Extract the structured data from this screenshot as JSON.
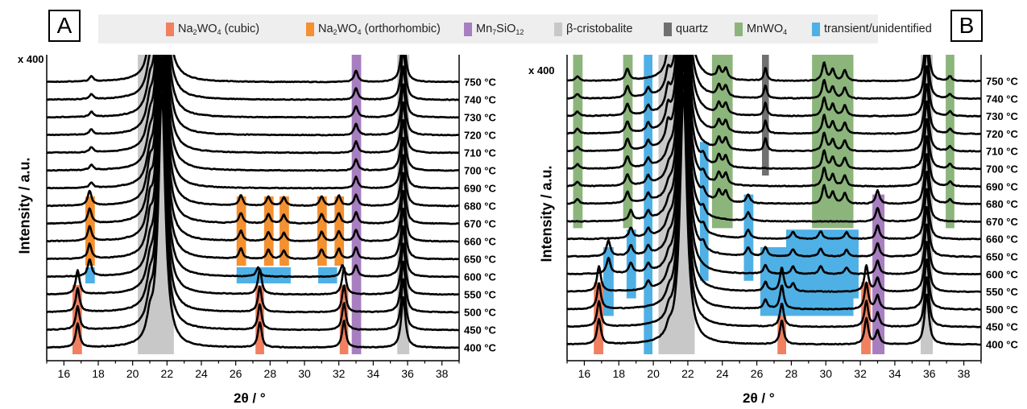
{
  "legend": {
    "items": [
      {
        "label": "Na",
        "sub": "2",
        "rest": "WO",
        "sub2": "4",
        "tail": " (cubic)",
        "color": "#f08060"
      },
      {
        "label": "Na",
        "sub": "2",
        "rest": "WO",
        "sub2": "4",
        "tail": " (orthorhombic)",
        "color": "#f39030"
      },
      {
        "label": "Mn",
        "sub": "7",
        "rest": "SiO",
        "sub2": "12",
        "tail": "",
        "color": "#a77fc0"
      },
      {
        "label": "β-cristobalite",
        "sub": "",
        "rest": "",
        "sub2": "",
        "tail": "",
        "color": "#c8c8c8"
      },
      {
        "label": "quartz",
        "sub": "",
        "rest": "",
        "sub2": "",
        "tail": "",
        "color": "#707070"
      },
      {
        "label": "MnWO",
        "sub": "4",
        "rest": "",
        "sub2": "",
        "tail": "",
        "color": "#8cb57c"
      },
      {
        "label": "transient/unidentified",
        "sub": "",
        "rest": "",
        "sub2": "",
        "tail": "",
        "color": "#4fb0e5"
      }
    ]
  },
  "chart_data": [
    {
      "type": "line",
      "panel": "A",
      "multiplier": "x 400",
      "xlabel": "2θ / °",
      "ylabel": "Intensity / a.u.",
      "xlim": [
        15,
        39
      ],
      "xticks": [
        16,
        18,
        20,
        22,
        24,
        26,
        28,
        30,
        32,
        34,
        36,
        38
      ],
      "temperatures": [
        "400 °C",
        "450 °C",
        "500 °C",
        "550 °C",
        "600 °C",
        "650 °C",
        "660 °C",
        "670 °C",
        "680 °C",
        "690 °C",
        "700 °C",
        "710 °C",
        "720 °C",
        "730 °C",
        "740 °C",
        "750 °C"
      ],
      "peaks": [
        {
          "pos": 16.8,
          "height": 4.2,
          "width": 0.13,
          "from": 0,
          "to": 3
        },
        {
          "pos": 27.4,
          "height": 4.5,
          "width": 0.13,
          "from": 0,
          "to": 3
        },
        {
          "pos": 32.3,
          "height": 4.8,
          "width": 0.13,
          "from": 0,
          "to": 3
        },
        {
          "pos": 17.5,
          "height": 3.0,
          "width": 0.13,
          "from": 4,
          "to": 4
        },
        {
          "pos": 27.3,
          "height": 1.6,
          "width": 0.13,
          "from": 4,
          "to": 4
        },
        {
          "pos": 32.2,
          "height": 2.0,
          "width": 0.13,
          "from": 4,
          "to": 4
        },
        {
          "pos": 17.5,
          "height": 2.6,
          "width": 0.13,
          "from": 5,
          "to": 8
        },
        {
          "pos": 17.6,
          "height": 0.9,
          "width": 0.13,
          "from": 9,
          "to": 15
        },
        {
          "pos": 21.0,
          "height": 1.1,
          "width": 0.15,
          "from": 5,
          "to": 8
        },
        {
          "pos": 26.3,
          "height": 1.8,
          "width": 0.13,
          "from": 5,
          "to": 8
        },
        {
          "pos": 27.9,
          "height": 1.6,
          "width": 0.13,
          "from": 5,
          "to": 8
        },
        {
          "pos": 28.8,
          "height": 1.5,
          "width": 0.13,
          "from": 5,
          "to": 8
        },
        {
          "pos": 31.0,
          "height": 1.7,
          "width": 0.13,
          "from": 5,
          "to": 8
        },
        {
          "pos": 32.0,
          "height": 1.8,
          "width": 0.13,
          "from": 5,
          "to": 8
        },
        {
          "pos": 33.0,
          "height": 2.0,
          "width": 0.13,
          "from": 4,
          "to": 15
        },
        {
          "pos": 35.75,
          "height": 9.0,
          "width": 0.15,
          "from": 0,
          "to": 15
        },
        {
          "pos": 21.0,
          "height": 3.5,
          "width": 0.22,
          "from": 0,
          "to": 15
        },
        {
          "pos": 21.7,
          "height": 45.0,
          "width": 0.24,
          "from": 0,
          "to": 15
        }
      ],
      "bands": [
        {
          "phase": "cubic",
          "color": "#f08060",
          "x0": 16.5,
          "x1": 17.05,
          "from": 0,
          "to": 3
        },
        {
          "phase": "cubic",
          "color": "#f08060",
          "x0": 27.15,
          "x1": 27.65,
          "from": 0,
          "to": 3
        },
        {
          "phase": "cubic",
          "color": "#f08060",
          "x0": 32.05,
          "x1": 32.55,
          "from": 0,
          "to": 3
        },
        {
          "phase": "orthorhombic",
          "color": "#f39030",
          "x0": 17.25,
          "x1": 17.8,
          "from": 5,
          "to": 8
        },
        {
          "phase": "orthorhombic",
          "color": "#f39030",
          "x0": 20.75,
          "x1": 21.3,
          "from": 5,
          "to": 8
        },
        {
          "phase": "orthorhombic",
          "color": "#f39030",
          "x0": 26.05,
          "x1": 26.6,
          "from": 5,
          "to": 8
        },
        {
          "phase": "orthorhombic",
          "color": "#f39030",
          "x0": 27.65,
          "x1": 28.2,
          "from": 5,
          "to": 8
        },
        {
          "phase": "orthorhombic",
          "color": "#f39030",
          "x0": 28.55,
          "x1": 29.1,
          "from": 5,
          "to": 8
        },
        {
          "phase": "orthorhombic",
          "color": "#f39030",
          "x0": 30.75,
          "x1": 31.3,
          "from": 5,
          "to": 8
        },
        {
          "phase": "orthorhombic",
          "color": "#f39030",
          "x0": 31.75,
          "x1": 32.3,
          "from": 5,
          "to": 8
        },
        {
          "phase": "transient",
          "color": "#4fb0e5",
          "x0": 17.25,
          "x1": 17.8,
          "from": 4,
          "to": 4
        },
        {
          "phase": "transient",
          "color": "#4fb0e5",
          "x0": 26.05,
          "x1": 29.2,
          "from": 4,
          "to": 4
        },
        {
          "phase": "transient",
          "color": "#4fb0e5",
          "x0": 30.8,
          "x1": 31.9,
          "from": 4,
          "to": 4
        },
        {
          "phase": "Mn7SiO12",
          "color": "#a77fc0",
          "x0": 32.75,
          "x1": 33.3,
          "from": 0,
          "to": 15
        },
        {
          "phase": "cristobalite",
          "color": "#c8c8c8",
          "x0": 20.3,
          "x1": 22.4,
          "from": 0,
          "to": 15
        },
        {
          "phase": "cristobalite",
          "color": "#c8c8c8",
          "x0": 35.4,
          "x1": 36.1,
          "from": 0,
          "to": 15
        }
      ]
    },
    {
      "type": "line",
      "panel": "B",
      "multiplier": "x 400",
      "xlabel": "2θ / °",
      "ylabel": "Intensity / a.u.",
      "xlim": [
        15,
        39
      ],
      "xticks": [
        16,
        18,
        20,
        22,
        24,
        26,
        28,
        30,
        32,
        34,
        36,
        38
      ],
      "temperatures": [
        "400 °C",
        "450 °C",
        "500 °C",
        "550 °C",
        "600 °C",
        "650 °C",
        "660 °C",
        "670 °C",
        "680 °C",
        "690 °C",
        "700 °C",
        "710 °C",
        "720 °C",
        "730 °C",
        "740 °C",
        "750 °C"
      ],
      "peaks": [
        {
          "pos": 16.85,
          "height": 4.5,
          "width": 0.13,
          "from": 0,
          "to": 3
        },
        {
          "pos": 27.45,
          "height": 4.2,
          "width": 0.13,
          "from": 0,
          "to": 3
        },
        {
          "pos": 32.35,
          "height": 4.6,
          "width": 0.13,
          "from": 0,
          "to": 3
        },
        {
          "pos": 17.4,
          "height": 2.8,
          "width": 0.13,
          "from": 4,
          "to": 5
        },
        {
          "pos": 18.7,
          "height": 1.8,
          "width": 0.13,
          "from": 4,
          "to": 7
        },
        {
          "pos": 19.7,
          "height": 1.4,
          "width": 0.13,
          "from": 3,
          "to": 14
        },
        {
          "pos": 22.9,
          "height": 1.2,
          "width": 0.13,
          "from": 5,
          "to": 10
        },
        {
          "pos": 25.5,
          "height": 1.5,
          "width": 0.13,
          "from": 5,
          "to": 8
        },
        {
          "pos": 26.5,
          "height": 1.6,
          "width": 0.13,
          "from": 2,
          "to": 5
        },
        {
          "pos": 28.1,
          "height": 1.3,
          "width": 0.13,
          "from": 3,
          "to": 6
        },
        {
          "pos": 29.7,
          "height": 1.4,
          "width": 0.13,
          "from": 4,
          "to": 6
        },
        {
          "pos": 31.2,
          "height": 1.2,
          "width": 0.13,
          "from": 4,
          "to": 6
        },
        {
          "pos": 33.0,
          "height": 2.4,
          "width": 0.13,
          "from": 0,
          "to": 8
        },
        {
          "pos": 18.5,
          "height": 2.0,
          "width": 0.13,
          "from": 8,
          "to": 15
        },
        {
          "pos": 23.8,
          "height": 1.9,
          "width": 0.13,
          "from": 8,
          "to": 15
        },
        {
          "pos": 24.2,
          "height": 1.9,
          "width": 0.13,
          "from": 8,
          "to": 15
        },
        {
          "pos": 29.9,
          "height": 3.2,
          "width": 0.13,
          "from": 8,
          "to": 15
        },
        {
          "pos": 30.4,
          "height": 2.0,
          "width": 0.13,
          "from": 8,
          "to": 15
        },
        {
          "pos": 31.1,
          "height": 1.9,
          "width": 0.13,
          "from": 8,
          "to": 15
        },
        {
          "pos": 15.6,
          "height": 0.8,
          "width": 0.13,
          "from": 8,
          "to": 15
        },
        {
          "pos": 37.2,
          "height": 0.8,
          "width": 0.13,
          "from": 8,
          "to": 15
        },
        {
          "pos": 26.5,
          "height": 2.3,
          "width": 0.1,
          "from": 11,
          "to": 15
        },
        {
          "pos": 20.85,
          "height": 3.0,
          "width": 0.15,
          "from": 11,
          "to": 15
        },
        {
          "pos": 20.9,
          "height": 1.5,
          "width": 0.18,
          "from": 0,
          "to": 10
        },
        {
          "pos": 35.85,
          "height": 9.0,
          "width": 0.15,
          "from": 0,
          "to": 15
        },
        {
          "pos": 21.75,
          "height": 45.0,
          "width": 0.24,
          "from": 0,
          "to": 15
        }
      ],
      "bands": [
        {
          "phase": "cubic",
          "color": "#f08060",
          "x0": 16.55,
          "x1": 17.1,
          "from": 0,
          "to": 3
        },
        {
          "phase": "cubic",
          "color": "#f08060",
          "x0": 27.2,
          "x1": 27.7,
          "from": 0,
          "to": 3
        },
        {
          "phase": "cubic",
          "color": "#f08060",
          "x0": 32.05,
          "x1": 32.6,
          "from": 0,
          "to": 3
        },
        {
          "phase": "MnWO4",
          "color": "#8cb57c",
          "x0": 15.35,
          "x1": 15.9,
          "from": 7,
          "to": 15
        },
        {
          "phase": "MnWO4",
          "color": "#8cb57c",
          "x0": 18.25,
          "x1": 18.8,
          "from": 7,
          "to": 15
        },
        {
          "phase": "MnWO4",
          "color": "#8cb57c",
          "x0": 23.4,
          "x1": 24.6,
          "from": 7,
          "to": 15
        },
        {
          "phase": "MnWO4",
          "color": "#8cb57c",
          "x0": 29.2,
          "x1": 31.6,
          "from": 7,
          "to": 15
        },
        {
          "phase": "MnWO4",
          "color": "#8cb57c",
          "x0": 36.95,
          "x1": 37.45,
          "from": 7,
          "to": 15
        },
        {
          "phase": "transient",
          "color": "#4fb0e5",
          "x0": 17.1,
          "x1": 17.7,
          "from": 2,
          "to": 5
        },
        {
          "phase": "transient",
          "color": "#4fb0e5",
          "x0": 18.45,
          "x1": 19.0,
          "from": 3,
          "to": 6
        },
        {
          "phase": "transient",
          "color": "#4fb0e5",
          "x0": 19.45,
          "x1": 19.95,
          "from": 0,
          "to": 15
        },
        {
          "phase": "transient",
          "color": "#4fb0e5",
          "x0": 22.7,
          "x1": 23.2,
          "from": 4,
          "to": 11
        },
        {
          "phase": "transient",
          "color": "#4fb0e5",
          "x0": 25.25,
          "x1": 25.8,
          "from": 4,
          "to": 8
        },
        {
          "phase": "transient",
          "color": "#4fb0e5",
          "x0": 26.2,
          "x1": 31.6,
          "from": 2,
          "to": 5
        },
        {
          "phase": "transient",
          "color": "#4fb0e5",
          "x0": 27.7,
          "x1": 31.9,
          "from": 3,
          "to": 6
        },
        {
          "phase": "quartz",
          "color": "#707070",
          "x0": 20.55,
          "x1": 21.25,
          "from": 10,
          "to": 15
        },
        {
          "phase": "quartz",
          "color": "#707070",
          "x0": 26.3,
          "x1": 26.7,
          "from": 10,
          "to": 15
        },
        {
          "phase": "Mn7SiO12",
          "color": "#a77fc0",
          "x0": 32.7,
          "x1": 33.4,
          "from": 0,
          "to": 8
        },
        {
          "phase": "cristobalite",
          "color": "#c8c8c8",
          "x0": 20.3,
          "x1": 22.4,
          "from": 0,
          "to": 15
        },
        {
          "phase": "cristobalite",
          "color": "#c8c8c8",
          "x0": 35.5,
          "x1": 36.2,
          "from": 0,
          "to": 15
        }
      ]
    }
  ]
}
